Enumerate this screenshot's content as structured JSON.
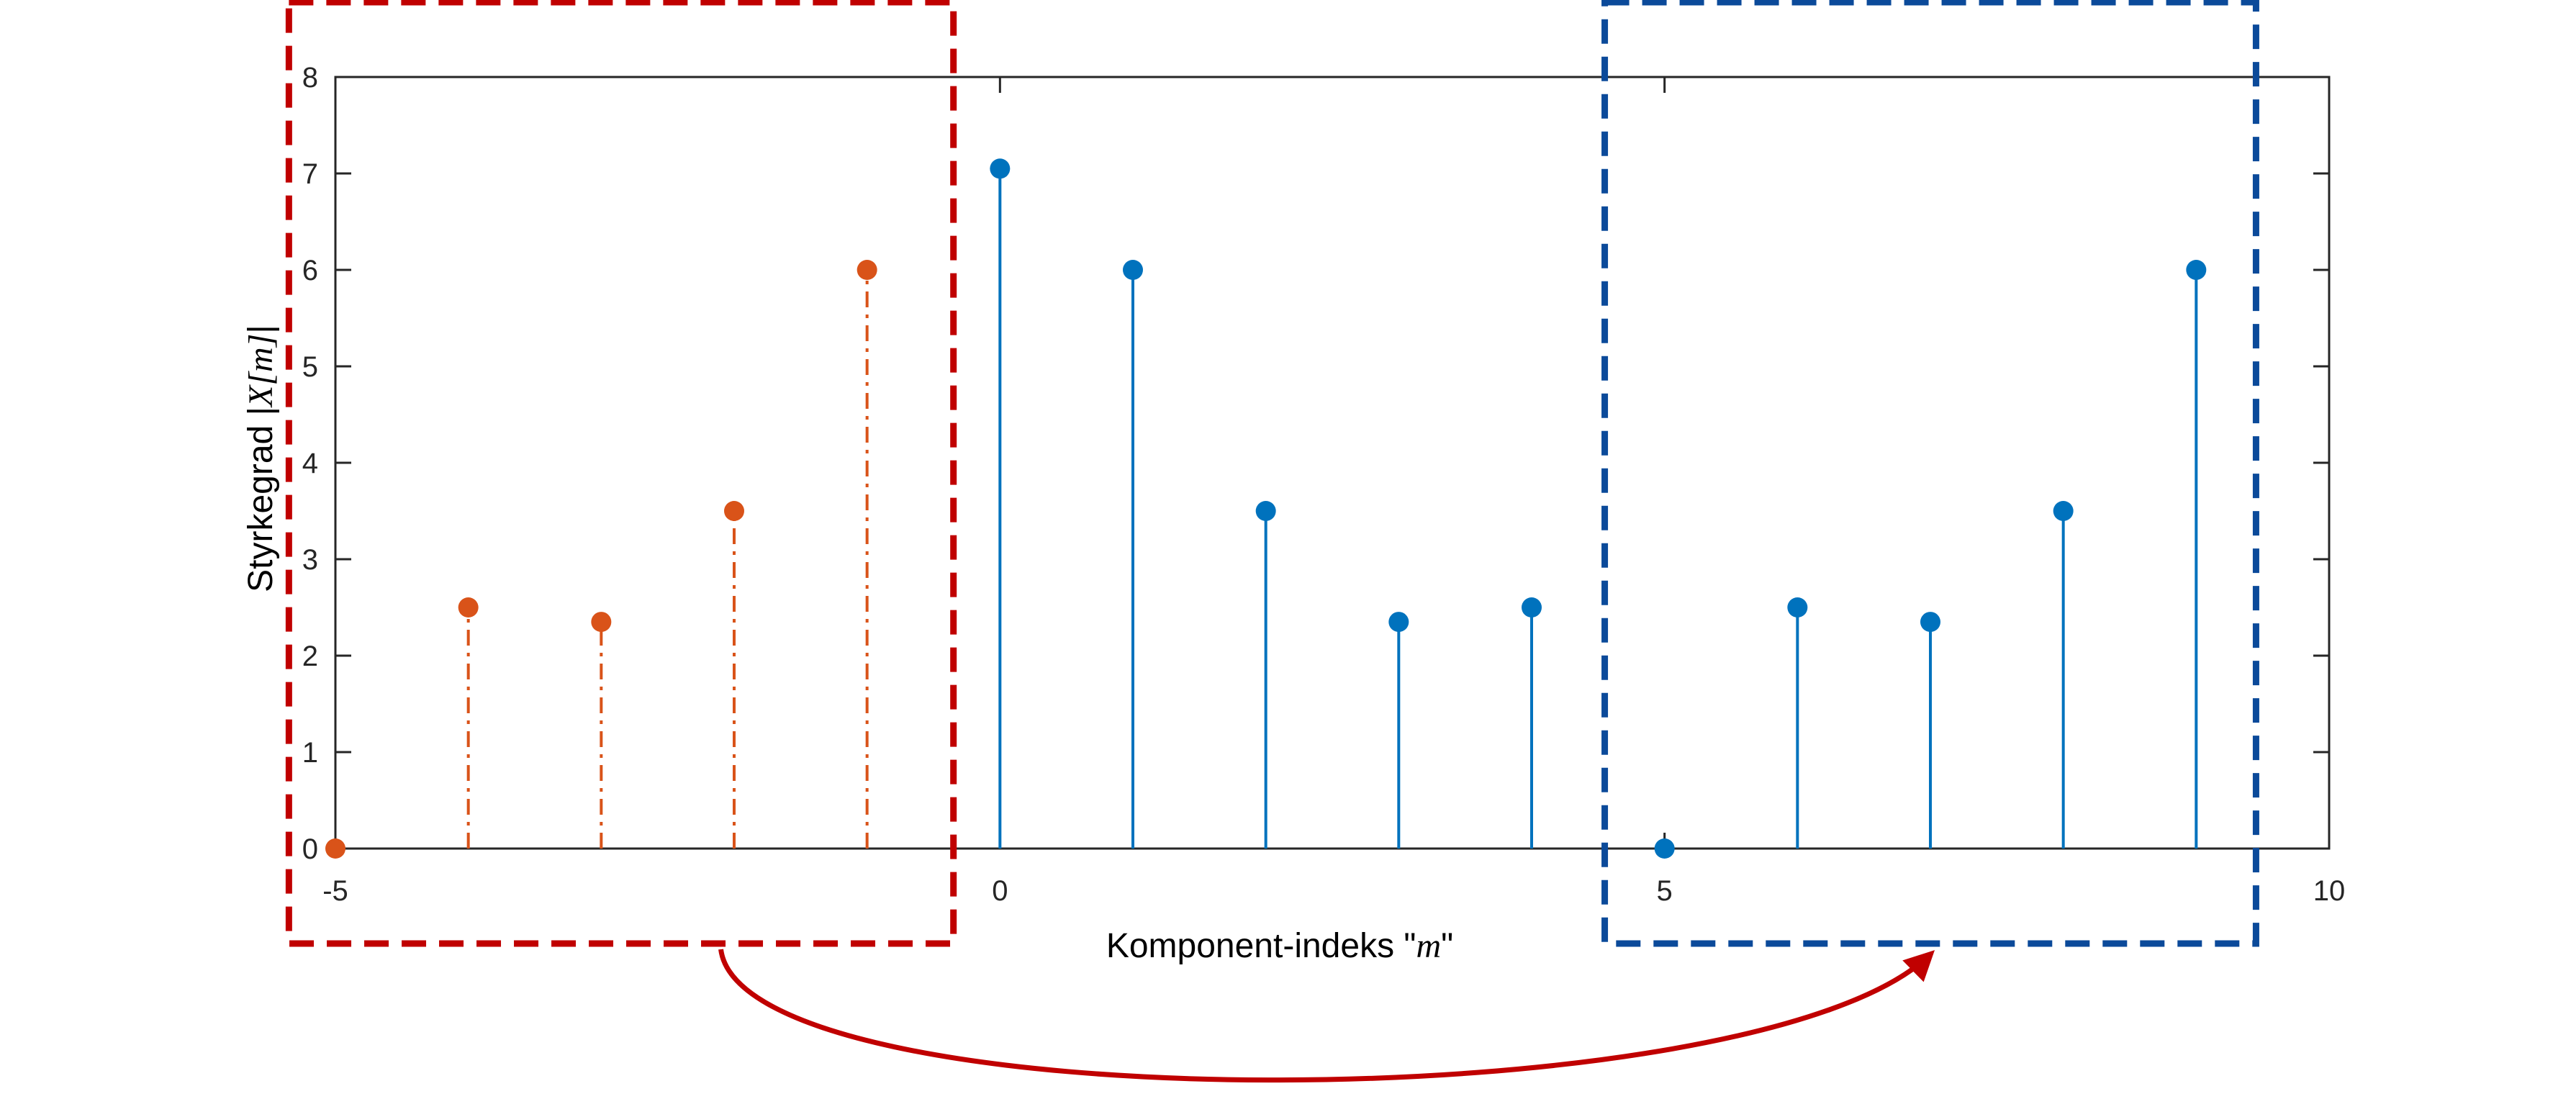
{
  "chart_data": {
    "type": "stem",
    "xlabel_prefix": "Komponent-indeks \"",
    "xlabel_var": "m",
    "xlabel_suffix": "\"",
    "ylabel_prefix": "Styrkegrad |",
    "ylabel_math": "X[m]",
    "ylabel_suffix": "|",
    "xlim": [
      -5,
      10
    ],
    "ylim": [
      0,
      8
    ],
    "xticks": [
      "-5",
      "0",
      "5",
      "10"
    ],
    "yticks": [
      "0",
      "1",
      "2",
      "3",
      "4",
      "5",
      "6",
      "7",
      "8"
    ],
    "grid": false,
    "series": [
      {
        "color": "#D95319",
        "line_style": "dash-dot",
        "x": [
          -5,
          -4,
          -3,
          -2,
          -1
        ],
        "values": [
          0,
          2.5,
          2.35,
          3.5,
          6.0
        ]
      },
      {
        "color": "#0072BD",
        "line_style": "solid",
        "x": [
          0,
          1,
          2,
          3,
          4,
          5,
          6,
          7,
          8,
          9
        ],
        "values": [
          7.05,
          6.0,
          3.5,
          2.35,
          2.5,
          0,
          2.5,
          2.35,
          3.5,
          6.0
        ]
      }
    ],
    "annotations": [
      {
        "shape": "dashed-rectangle",
        "color": "#C00000",
        "x_range": [
          -5.35,
          -0.35
        ]
      },
      {
        "shape": "dashed-rectangle",
        "color": "#0B4A9A",
        "x_range": [
          4.55,
          9.45
        ]
      },
      {
        "shape": "curved-arrow",
        "color": "#C00000",
        "from": "red-box",
        "to": "blue-box"
      }
    ]
  }
}
